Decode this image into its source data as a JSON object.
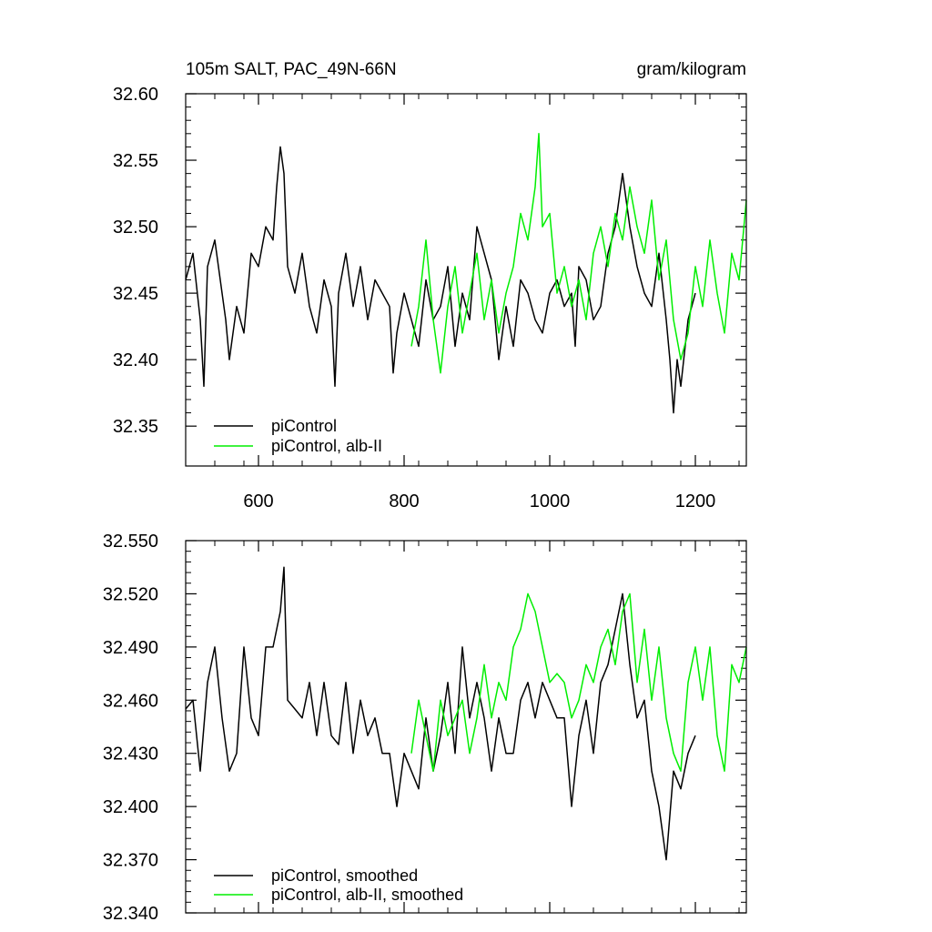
{
  "chart_data": [
    {
      "type": "line",
      "title": "105m SALT, PAC_49N-66N",
      "units": "gram/kilogram",
      "xlim": [
        500,
        1270
      ],
      "ylim": [
        32.32,
        32.6
      ],
      "xticks": [
        600,
        800,
        1000,
        1200
      ],
      "xtick_labels": [
        "600",
        "800",
        "1000",
        "1200"
      ],
      "yticks": [
        32.35,
        32.4,
        32.45,
        32.5,
        32.55,
        32.6
      ],
      "ytick_labels": [
        "32.35",
        "32.40",
        "32.45",
        "32.50",
        "32.55",
        "32.60"
      ],
      "legend_position": "bottom-left",
      "series": [
        {
          "name": "piControl",
          "color": "#000000",
          "x": [
            500,
            510,
            520,
            525,
            530,
            540,
            550,
            555,
            560,
            570,
            580,
            590,
            600,
            610,
            620,
            625,
            630,
            635,
            640,
            650,
            660,
            670,
            680,
            690,
            700,
            705,
            710,
            720,
            730,
            740,
            750,
            760,
            770,
            780,
            785,
            790,
            800,
            810,
            820,
            830,
            840,
            850,
            860,
            870,
            880,
            890,
            900,
            910,
            920,
            930,
            940,
            950,
            960,
            970,
            980,
            990,
            1000,
            1010,
            1020,
            1030,
            1035,
            1040,
            1050,
            1060,
            1070,
            1080,
            1090,
            1100,
            1110,
            1120,
            1130,
            1140,
            1150,
            1160,
            1165,
            1170,
            1175,
            1180,
            1190,
            1200
          ],
          "values": [
            32.46,
            32.48,
            32.43,
            32.38,
            32.47,
            32.49,
            32.45,
            32.43,
            32.4,
            32.44,
            32.42,
            32.48,
            32.47,
            32.5,
            32.49,
            32.53,
            32.56,
            32.54,
            32.47,
            32.45,
            32.48,
            32.44,
            32.42,
            32.46,
            32.44,
            32.38,
            32.45,
            32.48,
            32.44,
            32.47,
            32.43,
            32.46,
            32.45,
            32.44,
            32.39,
            32.42,
            32.45,
            32.43,
            32.41,
            32.46,
            32.43,
            32.44,
            32.47,
            32.41,
            32.45,
            32.43,
            32.5,
            32.48,
            32.46,
            32.4,
            32.44,
            32.41,
            32.46,
            32.45,
            32.43,
            32.42,
            32.45,
            32.46,
            32.44,
            32.45,
            32.41,
            32.47,
            32.46,
            32.43,
            32.44,
            32.48,
            32.5,
            32.54,
            32.5,
            32.47,
            32.45,
            32.44,
            32.48,
            32.43,
            32.4,
            32.36,
            32.4,
            32.38,
            32.43,
            32.45
          ]
        },
        {
          "name": "piControl, alb-II",
          "color": "#00ee00",
          "x": [
            810,
            820,
            830,
            840,
            850,
            860,
            870,
            880,
            890,
            900,
            910,
            920,
            930,
            940,
            950,
            960,
            970,
            980,
            985,
            990,
            1000,
            1010,
            1020,
            1030,
            1040,
            1050,
            1060,
            1070,
            1080,
            1090,
            1100,
            1110,
            1120,
            1130,
            1140,
            1150,
            1160,
            1170,
            1180,
            1190,
            1200,
            1210,
            1220,
            1230,
            1240,
            1250,
            1260,
            1265,
            1270
          ],
          "values": [
            32.41,
            32.44,
            32.49,
            32.43,
            32.39,
            32.44,
            32.47,
            32.42,
            32.45,
            32.48,
            32.43,
            32.46,
            32.42,
            32.45,
            32.47,
            32.51,
            32.49,
            32.53,
            32.57,
            32.5,
            32.51,
            32.45,
            32.47,
            32.44,
            32.46,
            32.43,
            32.48,
            32.5,
            32.47,
            32.51,
            32.49,
            32.53,
            32.5,
            32.48,
            32.52,
            32.46,
            32.49,
            32.43,
            32.4,
            32.42,
            32.47,
            32.44,
            32.49,
            32.45,
            32.42,
            32.48,
            32.46,
            32.49,
            32.52
          ]
        }
      ]
    },
    {
      "type": "line",
      "title": "",
      "xlim": [
        500,
        1270
      ],
      "ylim": [
        32.34,
        32.55
      ],
      "xticks": [
        600,
        800,
        1000,
        1200
      ],
      "xtick_labels": [],
      "yticks": [
        32.34,
        32.37,
        32.4,
        32.43,
        32.46,
        32.49,
        32.52,
        32.55
      ],
      "ytick_labels": [
        "32.340",
        "32.370",
        "32.400",
        "32.430",
        "32.460",
        "32.490",
        "32.520",
        "32.550"
      ],
      "legend_position": "bottom-left",
      "series": [
        {
          "name": "piControl, smoothed",
          "color": "#000000",
          "x": [
            500,
            510,
            520,
            530,
            540,
            550,
            560,
            570,
            580,
            590,
            600,
            610,
            620,
            630,
            635,
            640,
            650,
            660,
            670,
            680,
            690,
            700,
            710,
            720,
            730,
            740,
            750,
            760,
            770,
            780,
            790,
            800,
            810,
            820,
            830,
            840,
            850,
            860,
            870,
            880,
            890,
            900,
            910,
            920,
            930,
            940,
            950,
            960,
            970,
            980,
            990,
            1000,
            1010,
            1020,
            1030,
            1040,
            1050,
            1060,
            1070,
            1080,
            1090,
            1100,
            1110,
            1120,
            1130,
            1140,
            1150,
            1160,
            1170,
            1180,
            1190,
            1200
          ],
          "values": [
            32.455,
            32.46,
            32.42,
            32.47,
            32.49,
            32.45,
            32.42,
            32.43,
            32.49,
            32.45,
            32.44,
            32.49,
            32.49,
            32.51,
            32.535,
            32.46,
            32.455,
            32.45,
            32.47,
            32.44,
            32.47,
            32.44,
            32.435,
            32.47,
            32.43,
            32.46,
            32.44,
            32.45,
            32.43,
            32.43,
            32.4,
            32.43,
            32.42,
            32.41,
            32.45,
            32.42,
            32.44,
            32.47,
            32.43,
            32.49,
            32.45,
            32.47,
            32.45,
            32.42,
            32.45,
            32.43,
            32.43,
            32.46,
            32.47,
            32.45,
            32.47,
            32.46,
            32.45,
            32.45,
            32.4,
            32.44,
            32.46,
            32.43,
            32.47,
            32.48,
            32.5,
            32.52,
            32.48,
            32.45,
            32.46,
            32.42,
            32.4,
            32.37,
            32.42,
            32.41,
            32.43,
            32.44
          ]
        },
        {
          "name": "piControl, alb-II, smoothed",
          "color": "#00ee00",
          "x": [
            810,
            820,
            830,
            840,
            850,
            860,
            870,
            880,
            890,
            900,
            910,
            920,
            930,
            940,
            950,
            960,
            970,
            980,
            990,
            1000,
            1010,
            1020,
            1030,
            1040,
            1050,
            1060,
            1070,
            1080,
            1090,
            1100,
            1110,
            1120,
            1130,
            1140,
            1150,
            1160,
            1170,
            1180,
            1190,
            1200,
            1210,
            1220,
            1230,
            1240,
            1250,
            1260,
            1265,
            1270
          ],
          "values": [
            32.43,
            32.46,
            32.44,
            32.42,
            32.46,
            32.44,
            32.45,
            32.46,
            32.43,
            32.45,
            32.48,
            32.45,
            32.47,
            32.46,
            32.49,
            32.5,
            32.52,
            32.51,
            32.49,
            32.47,
            32.475,
            32.47,
            32.45,
            32.46,
            32.48,
            32.47,
            32.49,
            32.5,
            32.48,
            32.51,
            32.52,
            32.47,
            32.5,
            32.46,
            32.49,
            32.45,
            32.43,
            32.42,
            32.47,
            32.49,
            32.46,
            32.49,
            32.44,
            32.42,
            32.48,
            32.47,
            32.48,
            32.49
          ]
        }
      ]
    }
  ]
}
